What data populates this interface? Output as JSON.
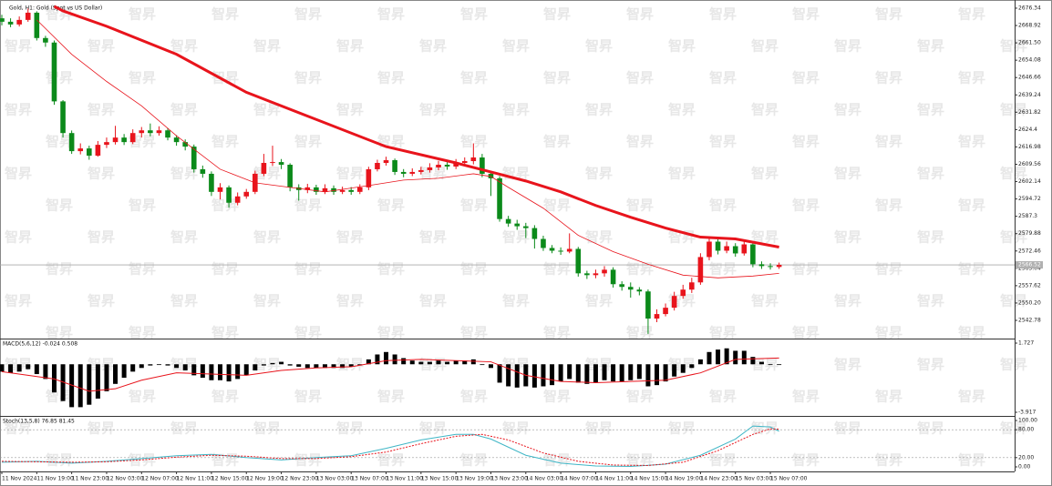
{
  "watermark": "智昇",
  "chart_data": [
    {
      "type": "candlestick",
      "title": "Gold, H1: Gold (Spot vs US Dollar)",
      "up_color": "#e8141c",
      "down_color": "#0b8a1a",
      "open": [
        2672.0,
        2670.53,
        2669.37,
        2671.31,
        2674.4,
        2663.56,
        2661.63,
        2636.46,
        2622.91,
        2615.17,
        2616.33,
        2613.23,
        2617.88,
        2619.04,
        2620.98,
        2619.04,
        2622.91,
        2624.07,
        2622.91,
        2624.07,
        2620.98,
        2619.04,
        2617.11,
        2607.43,
        2605.49,
        2597.75,
        2599.68,
        2593.1,
        2595.81,
        2597.75,
        2605.49,
        2610.14,
        2610.5,
        2609.36,
        2599.68,
        2598.52,
        2599.68,
        2597.75,
        2599.3,
        2597.75,
        2598.52,
        2597.75,
        2599.68,
        2607.43,
        2610.14,
        2611.3,
        2606.27,
        2605.49,
        2606.27,
        2607.04,
        2608.2,
        2609.36,
        2608.59,
        2610.14,
        2610.91,
        2612.46,
        2605.49,
        2603.56,
        2586.13,
        2584.2,
        2583.04,
        2582.26,
        2577.62,
        2573.75,
        2572.58,
        2572.2,
        2573.36,
        2562.9,
        2562.13,
        2562.9,
        2564.45,
        2558.26,
        2557.1,
        2555.94,
        2555.16,
        2543.55,
        2545.48,
        2548.19,
        2553.23,
        2555.94,
        2559.03,
        2569.87,
        2576.46,
        2572.58,
        2574.52,
        2571.42,
        2575.29,
        2566.78,
        2566.0,
        2565.62
      ],
      "high": [
        2673.5,
        2672.0,
        2672.8,
        2676.2,
        2675.0,
        2664.5,
        2662.5,
        2637.0,
        2624.0,
        2618.5,
        2617.5,
        2619.5,
        2621.0,
        2626.0,
        2622.5,
        2624.5,
        2625.5,
        2627.0,
        2625.8,
        2625.0,
        2622.0,
        2620.2,
        2618.0,
        2609.0,
        2606.5,
        2601.5,
        2600.5,
        2597.5,
        2599.0,
        2606.8,
        2614.0,
        2617.5,
        2611.8,
        2610.0,
        2601.0,
        2601.2,
        2600.8,
        2601.0,
        2600.5,
        2600.0,
        2599.8,
        2601.0,
        2608.5,
        2611.5,
        2612.8,
        2612.0,
        2607.5,
        2607.8,
        2608.5,
        2610.0,
        2611.0,
        2610.5,
        2611.8,
        2612.5,
        2618.5,
        2614.0,
        2606.5,
        2604.5,
        2587.5,
        2585.8,
        2584.5,
        2583.5,
        2579.0,
        2575.0,
        2574.0,
        2580.0,
        2574.2,
        2564.0,
        2564.5,
        2566.0,
        2565.5,
        2559.5,
        2559.0,
        2557.0,
        2556.0,
        2547.5,
        2550.0,
        2555.0,
        2558.0,
        2561.0,
        2571.5,
        2578.8,
        2577.8,
        2576.5,
        2575.8,
        2576.8,
        2576.0,
        2568.0,
        2567.2,
        2567.5
      ],
      "low": [
        2669.0,
        2668.2,
        2668.5,
        2670.5,
        2662.5,
        2659.8,
        2635.0,
        2621.0,
        2614.0,
        2613.8,
        2611.5,
        2612.8,
        2616.5,
        2618.0,
        2617.8,
        2618.2,
        2621.0,
        2621.5,
        2621.8,
        2619.8,
        2617.5,
        2615.5,
        2606.0,
        2603.8,
        2596.0,
        2594.5,
        2591.0,
        2592.0,
        2594.8,
        2596.8,
        2604.5,
        2608.8,
        2607.5,
        2598.0,
        2594.0,
        2597.2,
        2596.5,
        2596.8,
        2596.5,
        2596.8,
        2596.5,
        2596.8,
        2598.5,
        2606.5,
        2609.0,
        2605.0,
        2604.0,
        2604.5,
        2605.2,
        2606.0,
        2607.0,
        2607.2,
        2607.5,
        2609.0,
        2609.5,
        2604.0,
        2596.0,
        2585.0,
        2582.8,
        2581.5,
        2578.0,
        2573.5,
        2572.5,
        2571.5,
        2570.8,
        2571.5,
        2561.5,
        2560.5,
        2560.8,
        2561.5,
        2556.8,
        2555.5,
        2552.5,
        2553.5,
        2537.0,
        2542.0,
        2544.5,
        2547.0,
        2552.0,
        2554.5,
        2558.0,
        2568.5,
        2571.0,
        2571.5,
        2570.0,
        2570.5,
        2565.5,
        2564.8,
        2564.5,
        2564.8
      ],
      "close": [
        2670.53,
        2669.37,
        2671.31,
        2674.4,
        2663.56,
        2661.63,
        2636.46,
        2622.91,
        2615.17,
        2616.33,
        2613.23,
        2617.88,
        2619.04,
        2620.98,
        2619.04,
        2622.91,
        2624.07,
        2622.91,
        2624.07,
        2620.98,
        2619.04,
        2617.11,
        2607.43,
        2605.49,
        2597.75,
        2599.68,
        2593.1,
        2595.81,
        2597.75,
        2605.49,
        2610.14,
        2610.5,
        2609.36,
        2599.68,
        2598.52,
        2599.68,
        2597.75,
        2599.3,
        2597.75,
        2598.52,
        2597.75,
        2599.68,
        2607.43,
        2610.14,
        2611.3,
        2606.27,
        2605.49,
        2606.27,
        2607.04,
        2608.2,
        2609.36,
        2608.59,
        2610.14,
        2610.91,
        2612.46,
        2605.49,
        2603.56,
        2586.13,
        2584.2,
        2583.04,
        2582.26,
        2577.62,
        2573.75,
        2572.58,
        2572.2,
        2573.36,
        2562.9,
        2562.13,
        2562.9,
        2564.45,
        2558.26,
        2557.1,
        2555.94,
        2555.16,
        2543.55,
        2545.48,
        2548.19,
        2553.23,
        2555.94,
        2559.03,
        2569.87,
        2576.46,
        2572.58,
        2574.52,
        2571.42,
        2575.29,
        2566.78,
        2566.0,
        2565.62,
        2566.52
      ],
      "series": [
        {
          "color": "#e8141c",
          "width": 3,
          "x": [
            6,
            7,
            12,
            20,
            28,
            36,
            44,
            52,
            56,
            60,
            64,
            68,
            72,
            76,
            80,
            84,
            89
          ],
          "values": [
            2677.11,
            2675.18,
            2668.6,
            2656.6,
            2640.34,
            2628.72,
            2617.11,
            2610.14,
            2606.27,
            2602.4,
            2597.75,
            2591.94,
            2586.91,
            2582.26,
            2578.39,
            2577.62,
            2574.14
          ]
        },
        {
          "color": "#e8141c",
          "width": 0.8,
          "x": [
            4,
            8,
            12,
            16,
            20,
            25,
            29,
            33,
            37,
            42,
            46,
            50,
            54,
            56,
            58,
            62,
            66,
            70,
            74,
            78,
            82,
            86,
            89
          ],
          "values": [
            2671.31,
            2656.6,
            2644.98,
            2634.53,
            2621.75,
            2607.43,
            2601.62,
            2599.68,
            2597.75,
            2600.46,
            2602.78,
            2603.56,
            2605.49,
            2604.33,
            2599.68,
            2590.78,
            2579.17,
            2572.2,
            2566.78,
            2562.13,
            2560.97,
            2561.75,
            2562.9
          ]
        }
      ],
      "last_price": 2566.52,
      "ylim": [
        2535.0,
        2679.05
      ],
      "yticks": [
        2676.34,
        2668.92,
        {
          "value": 2661.5,
          "label": "2661.50"
        },
        2654.08,
        2646.66,
        2639.24,
        2631.82,
        2624.4,
        2616.98,
        2609.56,
        2602.14,
        2594.72,
        2587.3,
        2579.88,
        2572.46,
        2565.04,
        2557.62,
        {
          "value": 2550.2,
          "label": "2550.20"
        },
        2542.78
      ],
      "xticks": [
        {
          "value": 0,
          "label": "11 Nov 2024"
        },
        {
          "value": 4,
          "label": "11 Nov 19:00"
        },
        {
          "value": 8,
          "label": "11 Nov 23:00"
        },
        {
          "value": 12,
          "label": "12 Nov 03:00"
        },
        {
          "value": 16,
          "label": "12 Nov 07:00"
        },
        {
          "value": 20,
          "label": "12 Nov 11:00"
        },
        {
          "value": 24,
          "label": "12 Nov 15:00"
        },
        {
          "value": 28,
          "label": "12 Nov 19:00"
        },
        {
          "value": 32,
          "label": "12 Nov 23:00"
        },
        {
          "value": 36,
          "label": "13 Nov 03:00"
        },
        {
          "value": 40,
          "label": "13 Nov 07:00"
        },
        {
          "value": 44,
          "label": "13 Nov 11:00"
        },
        {
          "value": 48,
          "label": "13 Nov 15:00"
        },
        {
          "value": 52,
          "label": "13 Nov 19:00"
        },
        {
          "value": 56,
          "label": "13 Nov 23:00"
        },
        {
          "value": 60,
          "label": "14 Nov 03:00"
        },
        {
          "value": 64,
          "label": "14 Nov 07:00"
        },
        {
          "value": 68,
          "label": "14 Nov 11:00"
        },
        {
          "value": 72,
          "label": "14 Nov 15:00"
        },
        {
          "value": 76,
          "label": "14 Nov 19:00"
        },
        {
          "value": 80,
          "label": "14 Nov 23:00"
        },
        {
          "value": 84,
          "label": "15 Nov 03:00"
        },
        {
          "value": 88,
          "label": "15 Nov 07:00"
        }
      ]
    },
    {
      "type": "macd",
      "title": "MACD(5,6,12) -0.024 0.508",
      "color": "#000000",
      "values": [
        -0.6,
        -0.7,
        -0.6,
        -0.4,
        -0.8,
        -1.2,
        -2.3,
        -3.0,
        -3.5,
        -3.5,
        -3.3,
        -2.8,
        -2.2,
        -1.6,
        -1.1,
        -0.6,
        -0.3,
        -0.1,
        0.0,
        -0.1,
        -0.3,
        -0.5,
        -0.9,
        -1.1,
        -1.3,
        -1.3,
        -1.4,
        -1.2,
        -0.9,
        -0.5,
        -0.1,
        0.1,
        0.2,
        -0.1,
        -0.2,
        -0.3,
        -0.3,
        -0.3,
        -0.3,
        -0.3,
        -0.2,
        -0.1,
        0.4,
        0.8,
        1.0,
        0.8,
        0.5,
        0.3,
        0.2,
        0.2,
        0.3,
        0.2,
        0.3,
        0.3,
        0.4,
        0.0,
        -0.3,
        -1.5,
        -1.8,
        -1.9,
        -1.8,
        -1.9,
        -1.8,
        -1.7,
        -1.4,
        -1.2,
        -1.5,
        -1.6,
        -1.5,
        -1.3,
        -1.4,
        -1.4,
        -1.3,
        -1.2,
        -1.8,
        -1.7,
        -1.4,
        -1.0,
        -0.7,
        -0.3,
        0.4,
        1.0,
        1.2,
        1.3,
        1.1,
        1.1,
        0.6,
        0.2,
        0.0,
        -0.024
      ],
      "series": [
        {
          "color": "#e8141c",
          "x": [
            0,
            6,
            10,
            13,
            16,
            20,
            24,
            28,
            32,
            36,
            40,
            44,
            48,
            52,
            56,
            60,
            64,
            68,
            72,
            76,
            80,
            84,
            89
          ],
          "values": [
            -0.6,
            -1.2,
            -2.2,
            -2.0,
            -1.3,
            -0.7,
            -0.8,
            -0.9,
            -0.5,
            -0.3,
            -0.2,
            0.3,
            0.4,
            0.3,
            0.2,
            -0.9,
            -1.4,
            -1.5,
            -1.4,
            -1.3,
            -0.7,
            0.4,
            0.508
          ]
        }
      ],
      "ylim": [
        -4.14,
        2.024
      ],
      "yticks": [
        1.727,
        -3.917
      ]
    },
    {
      "type": "stochastic",
      "title": "Stoch(13,5,8) 76.85 81.45",
      "levels": [
        80,
        20
      ],
      "series": [
        {
          "color": "#3fb6c6",
          "x": [
            0,
            4,
            8,
            12,
            16,
            20,
            24,
            28,
            32,
            36,
            40,
            44,
            48,
            52,
            54,
            56,
            60,
            64,
            68,
            72,
            76,
            80,
            84,
            86,
            88,
            89
          ],
          "values": [
            10,
            12,
            8,
            12,
            18,
            24,
            27,
            20,
            15,
            20,
            24,
            40,
            58,
            70,
            70,
            60,
            25,
            8,
            2,
            1,
            6,
            25,
            60,
            88,
            86,
            76.85
          ]
        },
        {
          "color": "#e8141c",
          "dashed": true,
          "x": [
            0,
            4,
            8,
            12,
            16,
            20,
            24,
            28,
            32,
            36,
            40,
            44,
            48,
            52,
            55,
            58,
            62,
            66,
            70,
            74,
            78,
            82,
            86,
            88,
            89
          ],
          "values": [
            12,
            11,
            10,
            11,
            15,
            21,
            25,
            23,
            18,
            18,
            22,
            32,
            50,
            66,
            70,
            58,
            30,
            12,
            4,
            3,
            10,
            35,
            70,
            82,
            81.45
          ]
        }
      ],
      "ylim": [
        -9.8,
        105.9
      ],
      "yticks": [
        {
          "value": 100,
          "label": "100.00"
        },
        {
          "value": 80,
          "label": "80.00"
        },
        {
          "value": 20,
          "label": "20.00"
        },
        {
          "value": 0,
          "label": "0.00"
        }
      ]
    }
  ]
}
